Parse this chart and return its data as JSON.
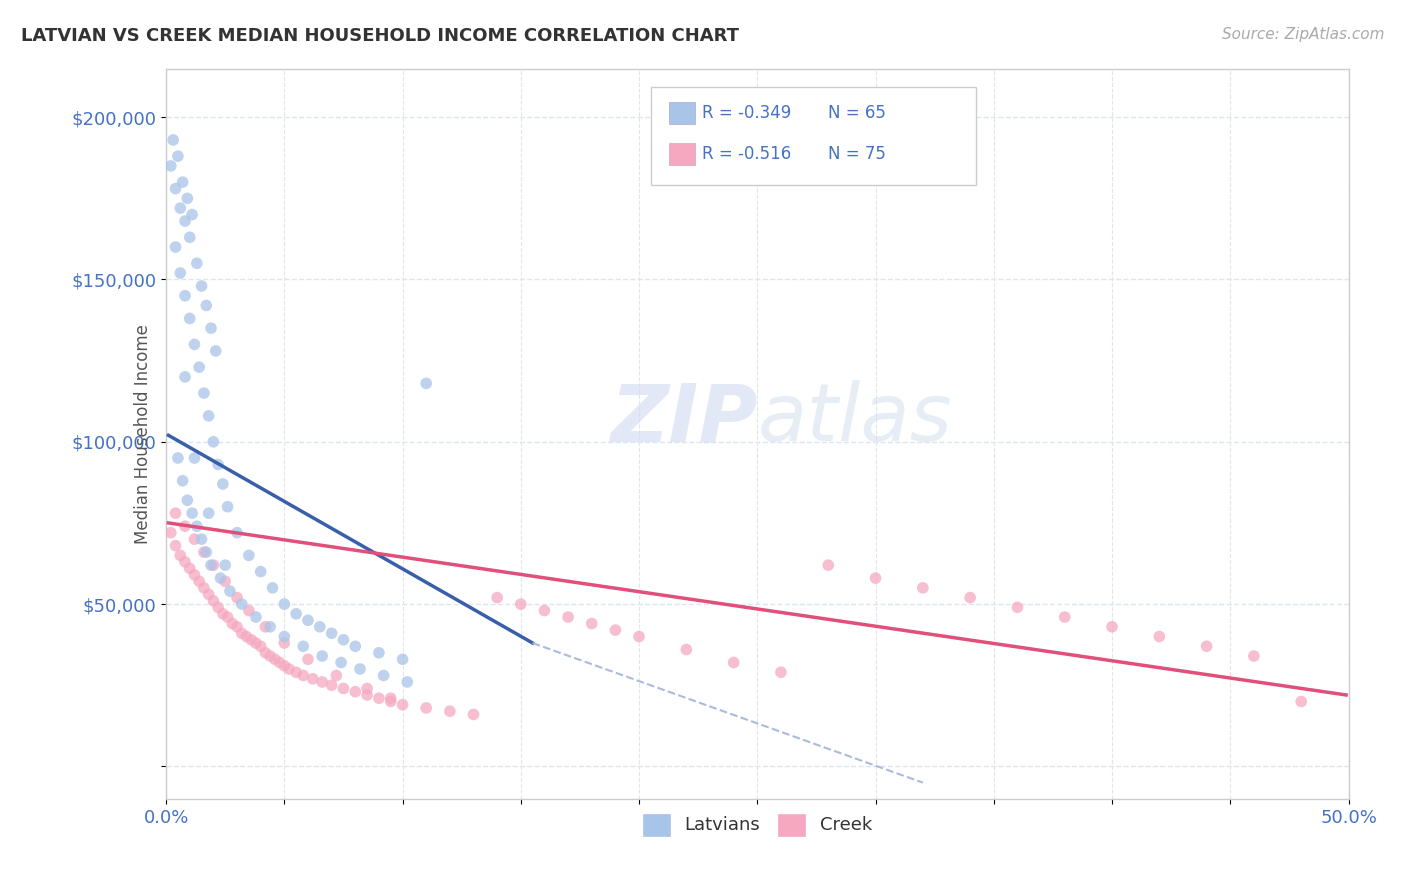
{
  "title": "LATVIAN VS CREEK MEDIAN HOUSEHOLD INCOME CORRELATION CHART",
  "source": "Source: ZipAtlas.com",
  "ylabel": "Median Household Income",
  "xlim": [
    0.0,
    0.5
  ],
  "ylim": [
    -10000,
    215000
  ],
  "xticks": [
    0.0,
    0.05,
    0.1,
    0.15,
    0.2,
    0.25,
    0.3,
    0.35,
    0.4,
    0.45,
    0.5
  ],
  "xticklabels": [
    "0.0%",
    "",
    "",
    "",
    "",
    "",
    "",
    "",
    "",
    "",
    "50.0%"
  ],
  "yticks": [
    0,
    50000,
    100000,
    150000,
    200000
  ],
  "yticklabels": [
    "",
    "$50,000",
    "$100,000",
    "$150,000",
    "$200,000"
  ],
  "latvian_color": "#a8c4e8",
  "creek_color": "#f5a8c0",
  "latvian_line_color": "#3a5faa",
  "creek_line_color": "#e0507a",
  "dashed_line_color": "#aabbdd",
  "grid_color": "#dde5f0",
  "label_color": "#4472c4",
  "background_color": "#ffffff",
  "R_latvian": -0.349,
  "N_latvian": 65,
  "R_creek": -0.516,
  "N_creek": 75,
  "latvian_line_x0": 0.001,
  "latvian_line_y0": 102000,
  "latvian_line_x1": 0.155,
  "latvian_line_y1": 38000,
  "creek_line_x0": 0.001,
  "creek_line_y0": 75000,
  "creek_line_x1": 0.499,
  "creek_line_y1": 22000,
  "dashed_line_x0": 0.155,
  "dashed_line_y0": 38000,
  "dashed_line_x1": 0.32,
  "dashed_line_y1": -5000,
  "latvian_x": [
    0.002,
    0.004,
    0.006,
    0.008,
    0.01,
    0.003,
    0.005,
    0.007,
    0.009,
    0.011,
    0.013,
    0.015,
    0.017,
    0.019,
    0.021,
    0.004,
    0.006,
    0.008,
    0.01,
    0.012,
    0.014,
    0.016,
    0.018,
    0.02,
    0.022,
    0.024,
    0.026,
    0.03,
    0.035,
    0.04,
    0.045,
    0.05,
    0.055,
    0.06,
    0.065,
    0.07,
    0.075,
    0.08,
    0.09,
    0.1,
    0.005,
    0.007,
    0.009,
    0.011,
    0.013,
    0.015,
    0.017,
    0.019,
    0.023,
    0.027,
    0.032,
    0.038,
    0.044,
    0.05,
    0.058,
    0.066,
    0.074,
    0.082,
    0.092,
    0.102,
    0.008,
    0.012,
    0.018,
    0.025,
    0.11
  ],
  "latvian_y": [
    185000,
    178000,
    172000,
    168000,
    163000,
    193000,
    188000,
    180000,
    175000,
    170000,
    155000,
    148000,
    142000,
    135000,
    128000,
    160000,
    152000,
    145000,
    138000,
    130000,
    123000,
    115000,
    108000,
    100000,
    93000,
    87000,
    80000,
    72000,
    65000,
    60000,
    55000,
    50000,
    47000,
    45000,
    43000,
    41000,
    39000,
    37000,
    35000,
    33000,
    95000,
    88000,
    82000,
    78000,
    74000,
    70000,
    66000,
    62000,
    58000,
    54000,
    50000,
    46000,
    43000,
    40000,
    37000,
    34000,
    32000,
    30000,
    28000,
    26000,
    120000,
    95000,
    78000,
    62000,
    118000
  ],
  "creek_x": [
    0.002,
    0.004,
    0.006,
    0.008,
    0.01,
    0.012,
    0.014,
    0.016,
    0.018,
    0.02,
    0.022,
    0.024,
    0.026,
    0.028,
    0.03,
    0.032,
    0.034,
    0.036,
    0.038,
    0.04,
    0.042,
    0.044,
    0.046,
    0.048,
    0.05,
    0.052,
    0.055,
    0.058,
    0.062,
    0.066,
    0.07,
    0.075,
    0.08,
    0.085,
    0.09,
    0.095,
    0.1,
    0.11,
    0.12,
    0.13,
    0.14,
    0.15,
    0.16,
    0.17,
    0.18,
    0.19,
    0.2,
    0.22,
    0.24,
    0.26,
    0.28,
    0.3,
    0.32,
    0.34,
    0.36,
    0.38,
    0.4,
    0.42,
    0.44,
    0.46,
    0.004,
    0.008,
    0.012,
    0.016,
    0.02,
    0.025,
    0.03,
    0.035,
    0.042,
    0.05,
    0.06,
    0.072,
    0.085,
    0.095,
    0.48
  ],
  "creek_y": [
    72000,
    68000,
    65000,
    63000,
    61000,
    59000,
    57000,
    55000,
    53000,
    51000,
    49000,
    47000,
    46000,
    44000,
    43000,
    41000,
    40000,
    39000,
    38000,
    37000,
    35000,
    34000,
    33000,
    32000,
    31000,
    30000,
    29000,
    28000,
    27000,
    26000,
    25000,
    24000,
    23000,
    22000,
    21000,
    20000,
    19000,
    18000,
    17000,
    16000,
    52000,
    50000,
    48000,
    46000,
    44000,
    42000,
    40000,
    36000,
    32000,
    29000,
    62000,
    58000,
    55000,
    52000,
    49000,
    46000,
    43000,
    40000,
    37000,
    34000,
    78000,
    74000,
    70000,
    66000,
    62000,
    57000,
    52000,
    48000,
    43000,
    38000,
    33000,
    28000,
    24000,
    21000,
    20000
  ]
}
